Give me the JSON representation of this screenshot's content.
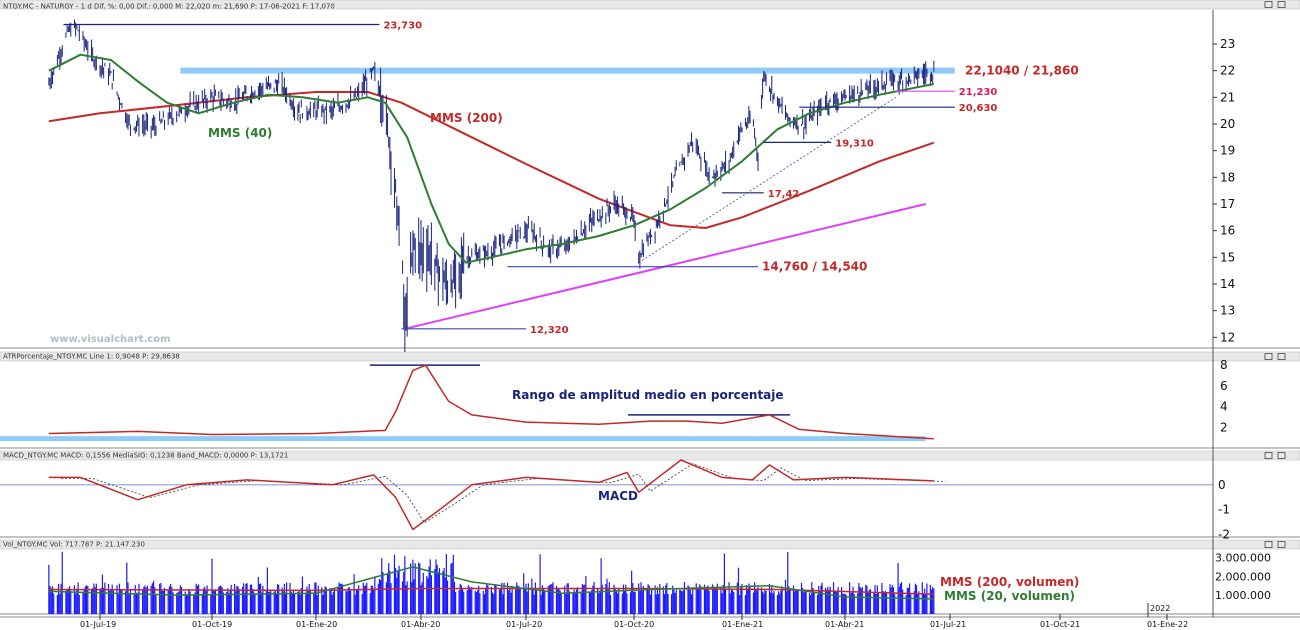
{
  "chart_data": {
    "type": "line",
    "headers": {
      "price": "NTGY.MC - NATURGY - 1 d  Dif. %: 0,00  Dif.: 0,000  M: 22,020  m: 21,690  P: 17-06-2021  F: 17,070",
      "atr": "ATRPorcentaje_NTGY.MC  Line 1: 0,9048  P: 29,8638",
      "macd": "MACD_NTGY.MC  MACD: 0,1556  MediaSIG: 0,1238  Band_MACD: 0,0000  P: 13,1721",
      "vol": "Vol_NTGY.MC  Vol: 717.787  P: 21.147.230"
    },
    "watermark": "www.visualchart.com",
    "x_labels": [
      "01-Jul-19",
      "01-Oct-19",
      "01-Ene-20",
      "01-Abr-20",
      "01-Jul-20",
      "01-Oct-20",
      "01-Ene-21",
      "01-Abr-21",
      "01-Jul-21",
      "01-Oct-21",
      "01-Ene-22"
    ],
    "year_marker": "2022",
    "price_axis": {
      "ticks": [
        "12",
        "13",
        "14",
        "15",
        "16",
        "17",
        "18",
        "19",
        "20",
        "21",
        "22",
        "23"
      ],
      "ylim": [
        11.6,
        24.2
      ]
    },
    "atr_axis": {
      "ticks": [
        "2",
        "4",
        "6",
        "8"
      ],
      "ylim": [
        0,
        8.5
      ]
    },
    "macd_axis": {
      "ticks": [
        "-2",
        "-1",
        "0"
      ],
      "ylim": [
        -2.1,
        1.0
      ]
    },
    "vol_axis": {
      "ticks": [
        "1.000.000",
        "2.000.000",
        "3.000.000"
      ],
      "ylim": [
        0,
        3500000
      ]
    },
    "close_path": [
      {
        "date": "2019-05-20",
        "v": 21.5
      },
      {
        "date": "2019-06-05",
        "v": 23.5
      },
      {
        "date": "2019-06-12",
        "v": 23.6
      },
      {
        "date": "2019-06-25",
        "v": 22.5
      },
      {
        "date": "2019-07-10",
        "v": 21.8
      },
      {
        "date": "2019-07-25",
        "v": 20.0
      },
      {
        "date": "2019-08-15",
        "v": 19.9
      },
      {
        "date": "2019-09-10",
        "v": 20.6
      },
      {
        "date": "2019-10-01",
        "v": 21.0
      },
      {
        "date": "2019-10-20",
        "v": 20.8
      },
      {
        "date": "2019-11-10",
        "v": 21.3
      },
      {
        "date": "2019-12-01",
        "v": 21.5
      },
      {
        "date": "2019-12-15",
        "v": 20.5
      },
      {
        "date": "2020-01-15",
        "v": 20.5
      },
      {
        "date": "2020-02-05",
        "v": 21.0
      },
      {
        "date": "2020-02-20",
        "v": 22.0
      },
      {
        "date": "2020-03-01",
        "v": 20.5
      },
      {
        "date": "2020-03-10",
        "v": 17.5
      },
      {
        "date": "2020-03-16",
        "v": 14.5
      },
      {
        "date": "2020-03-18",
        "v": 12.32
      },
      {
        "date": "2020-03-25",
        "v": 15.5
      },
      {
        "date": "2020-04-10",
        "v": 15.0
      },
      {
        "date": "2020-04-25",
        "v": 13.8
      },
      {
        "date": "2020-05-10",
        "v": 15.0
      },
      {
        "date": "2020-06-01",
        "v": 15.2
      },
      {
        "date": "2020-06-20",
        "v": 15.8
      },
      {
        "date": "2020-07-05",
        "v": 16.0
      },
      {
        "date": "2020-07-20",
        "v": 15.3
      },
      {
        "date": "2020-08-05",
        "v": 15.4
      },
      {
        "date": "2020-08-25",
        "v": 16.3
      },
      {
        "date": "2020-09-15",
        "v": 17.0
      },
      {
        "date": "2020-09-30",
        "v": 16.5
      },
      {
        "date": "2020-10-05",
        "v": 15.0
      },
      {
        "date": "2020-10-20",
        "v": 16.2
      },
      {
        "date": "2020-11-05",
        "v": 18.0
      },
      {
        "date": "2020-11-20",
        "v": 19.4
      },
      {
        "date": "2020-12-05",
        "v": 18.0
      },
      {
        "date": "2020-12-20",
        "v": 18.5
      },
      {
        "date": "2020-12-31",
        "v": 19.8
      },
      {
        "date": "2021-01-10",
        "v": 20.2
      },
      {
        "date": "2021-01-15",
        "v": 18.8
      },
      {
        "date": "2021-01-20",
        "v": 21.9
      },
      {
        "date": "2021-01-28",
        "v": 21.2
      },
      {
        "date": "2021-02-10",
        "v": 20.2
      },
      {
        "date": "2021-02-25",
        "v": 20.0
      },
      {
        "date": "2021-03-15",
        "v": 20.8
      },
      {
        "date": "2021-04-01",
        "v": 21.0
      },
      {
        "date": "2021-04-20",
        "v": 21.3
      },
      {
        "date": "2021-05-10",
        "v": 21.6
      },
      {
        "date": "2021-05-25",
        "v": 21.7
      },
      {
        "date": "2021-06-10",
        "v": 21.9
      },
      {
        "date": "2021-06-17",
        "v": 22.0
      }
    ],
    "mms40": [
      {
        "date": "2019-05-20",
        "v": 22.0
      },
      {
        "date": "2019-06-15",
        "v": 22.6
      },
      {
        "date": "2019-07-10",
        "v": 22.4
      },
      {
        "date": "2019-08-01",
        "v": 21.6
      },
      {
        "date": "2019-08-25",
        "v": 20.8
      },
      {
        "date": "2019-09-20",
        "v": 20.4
      },
      {
        "date": "2019-10-20",
        "v": 20.8
      },
      {
        "date": "2019-11-20",
        "v": 21.1
      },
      {
        "date": "2019-12-20",
        "v": 21.0
      },
      {
        "date": "2020-01-20",
        "v": 20.8
      },
      {
        "date": "2020-02-15",
        "v": 21.0
      },
      {
        "date": "2020-03-01",
        "v": 20.8
      },
      {
        "date": "2020-03-20",
        "v": 19.5
      },
      {
        "date": "2020-04-10",
        "v": 17.0
      },
      {
        "date": "2020-04-25",
        "v": 15.5
      },
      {
        "date": "2020-05-10",
        "v": 14.8
      },
      {
        "date": "2020-06-01",
        "v": 15.0
      },
      {
        "date": "2020-07-01",
        "v": 15.3
      },
      {
        "date": "2020-08-01",
        "v": 15.5
      },
      {
        "date": "2020-09-01",
        "v": 15.8
      },
      {
        "date": "2020-10-01",
        "v": 16.2
      },
      {
        "date": "2020-11-01",
        "v": 16.8
      },
      {
        "date": "2020-12-01",
        "v": 17.6
      },
      {
        "date": "2021-01-01",
        "v": 18.6
      },
      {
        "date": "2021-02-01",
        "v": 19.8
      },
      {
        "date": "2021-03-01",
        "v": 20.4
      },
      {
        "date": "2021-04-01",
        "v": 20.8
      },
      {
        "date": "2021-05-01",
        "v": 21.1
      },
      {
        "date": "2021-06-17",
        "v": 21.5
      }
    ],
    "mms200": [
      {
        "date": "2019-05-20",
        "v": 20.1
      },
      {
        "date": "2019-07-01",
        "v": 20.4
      },
      {
        "date": "2019-09-01",
        "v": 20.7
      },
      {
        "date": "2019-11-01",
        "v": 21.0
      },
      {
        "date": "2020-01-01",
        "v": 21.2
      },
      {
        "date": "2020-02-15",
        "v": 21.2
      },
      {
        "date": "2020-03-15",
        "v": 20.8
      },
      {
        "date": "2020-05-01",
        "v": 19.8
      },
      {
        "date": "2020-07-01",
        "v": 18.5
      },
      {
        "date": "2020-09-01",
        "v": 17.2
      },
      {
        "date": "2020-11-01",
        "v": 16.2
      },
      {
        "date": "2020-12-01",
        "v": 16.1
      },
      {
        "date": "2021-01-01",
        "v": 16.5
      },
      {
        "date": "2021-03-01",
        "v": 17.5
      },
      {
        "date": "2021-05-01",
        "v": 18.6
      },
      {
        "date": "2021-06-17",
        "v": 19.3
      }
    ],
    "atr_pct": [
      {
        "date": "2019-05-20",
        "v": 1.4
      },
      {
        "date": "2019-08-01",
        "v": 1.6
      },
      {
        "date": "2019-10-01",
        "v": 1.3
      },
      {
        "date": "2020-01-01",
        "v": 1.4
      },
      {
        "date": "2020-03-01",
        "v": 1.7
      },
      {
        "date": "2020-03-10",
        "v": 3.5
      },
      {
        "date": "2020-03-25",
        "v": 7.5
      },
      {
        "date": "2020-04-05",
        "v": 8.0
      },
      {
        "date": "2020-04-25",
        "v": 4.5
      },
      {
        "date": "2020-05-15",
        "v": 3.2
      },
      {
        "date": "2020-07-01",
        "v": 2.5
      },
      {
        "date": "2020-09-01",
        "v": 2.3
      },
      {
        "date": "2020-10-15",
        "v": 2.6
      },
      {
        "date": "2020-11-15",
        "v": 2.6
      },
      {
        "date": "2020-12-15",
        "v": 2.4
      },
      {
        "date": "2021-01-25",
        "v": 3.2
      },
      {
        "date": "2021-02-20",
        "v": 1.8
      },
      {
        "date": "2021-04-01",
        "v": 1.4
      },
      {
        "date": "2021-06-17",
        "v": 0.9
      }
    ],
    "macd": [
      {
        "date": "2019-05-20",
        "v": 0.3
      },
      {
        "date": "2019-06-15",
        "v": 0.3
      },
      {
        "date": "2019-08-01",
        "v": -0.6
      },
      {
        "date": "2019-09-10",
        "v": 0.0
      },
      {
        "date": "2019-11-01",
        "v": 0.2
      },
      {
        "date": "2020-01-15",
        "v": 0.0
      },
      {
        "date": "2020-02-20",
        "v": 0.4
      },
      {
        "date": "2020-03-10",
        "v": -0.5
      },
      {
        "date": "2020-03-25",
        "v": -1.8
      },
      {
        "date": "2020-04-20",
        "v": -0.9
      },
      {
        "date": "2020-05-15",
        "v": 0.0
      },
      {
        "date": "2020-07-01",
        "v": 0.3
      },
      {
        "date": "2020-09-01",
        "v": 0.1
      },
      {
        "date": "2020-09-25",
        "v": 0.5
      },
      {
        "date": "2020-10-05",
        "v": -0.3
      },
      {
        "date": "2020-11-10",
        "v": 1.0
      },
      {
        "date": "2020-12-15",
        "v": 0.3
      },
      {
        "date": "2021-01-10",
        "v": 0.2
      },
      {
        "date": "2021-01-25",
        "v": 0.8
      },
      {
        "date": "2021-02-15",
        "v": 0.2
      },
      {
        "date": "2021-04-01",
        "v": 0.3
      },
      {
        "date": "2021-06-17",
        "v": 0.16
      }
    ],
    "levels": [
      {
        "label": "23,730",
        "value": 23.73,
        "from": "2019-06-01",
        "to": "2020-02-25",
        "color": "#1a237e",
        "label_color": "#c62828"
      },
      {
        "label": "12,320",
        "value": 12.32,
        "from": "2020-03-15",
        "to": "2020-07-01",
        "color": "#3949ab",
        "label_color": "#c62828"
      },
      {
        "label": "14,760 / 14,540",
        "value": 14.65,
        "from": "2020-06-15",
        "to": "2021-01-15",
        "color": "#3949ab",
        "label_color": "#c62828"
      },
      {
        "label": "17,42",
        "value": 17.42,
        "from": "2020-12-15",
        "to": "2021-01-20",
        "color": "#1a237e",
        "label_color": "#c62828"
      },
      {
        "label": "19,310",
        "value": 19.31,
        "from": "2021-01-20",
        "to": "2021-03-20",
        "color": "#1a237e",
        "label_color": "#c62828"
      },
      {
        "label": "20,630",
        "value": 20.63,
        "from": "2021-02-20",
        "to": "2021-07-05",
        "color": "#1a237e",
        "label_color": "#c62828"
      },
      {
        "label": "21,230",
        "value": 21.23,
        "from": "2021-05-15",
        "to": "2021-07-05",
        "color": "#e040fb",
        "label_color": "#d81b60"
      }
    ],
    "resistance": {
      "label": "22,1040 / 21,860",
      "value": 22.0,
      "from": "2019-09-05",
      "to": "2021-07-05",
      "color": "#90caf9"
    },
    "trendline": {
      "from": {
        "date": "2020-03-18",
        "v": 12.32
      },
      "to": {
        "date": "2021-06-10",
        "v": 17.0
      },
      "color": "#e040fb"
    },
    "dotted_trend": {
      "from": {
        "date": "2020-10-05",
        "v": 14.8
      },
      "to": {
        "date": "2021-05-15",
        "v": 21.0
      }
    },
    "labels": {
      "mms40": "MMS (40)",
      "mms200": "MMS (200)",
      "atr_title": "Rango de amplitud medio en porcentaje",
      "macd_title": "MACD",
      "vol_mms200": "MMS (200, volumen)",
      "vol_mms20": "MMS (20, volumen)"
    },
    "colors": {
      "price": "#1a237e",
      "mms40": "#2e7d32",
      "mms200": "#c62828",
      "atr": "#c62828",
      "macd": "#c62828",
      "vol": "#1a1aff"
    }
  }
}
